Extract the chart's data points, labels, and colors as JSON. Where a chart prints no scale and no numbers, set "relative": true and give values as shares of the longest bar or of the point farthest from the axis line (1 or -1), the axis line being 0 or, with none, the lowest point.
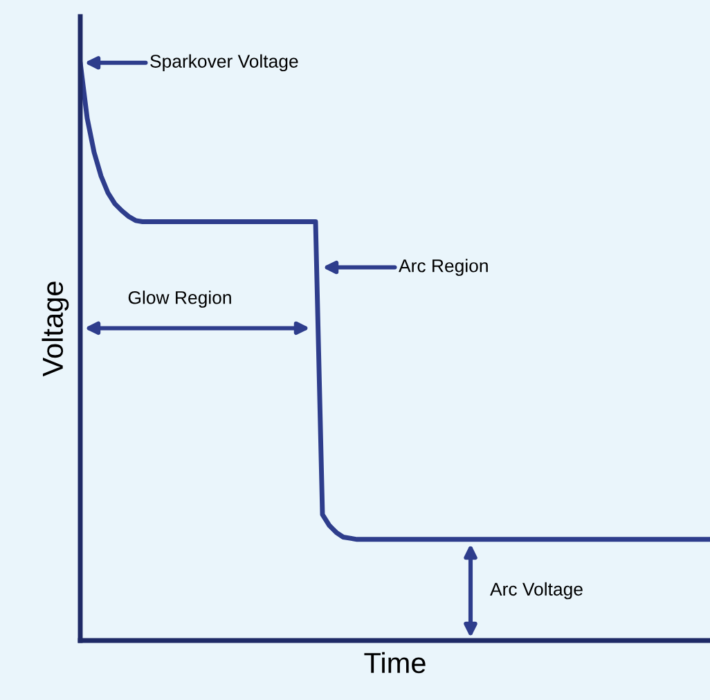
{
  "chart_data": {
    "type": "line",
    "relative": true,
    "xlabel": "Time",
    "ylabel": "Voltage",
    "color": "#2e3d8c",
    "marker": "none",
    "line_style": "solid",
    "categories": [
      null,
      null,
      null,
      null,
      null,
      null,
      null,
      null,
      null,
      null,
      null,
      null,
      null,
      null,
      null,
      null,
      null,
      null,
      null,
      null,
      null,
      null,
      null,
      null,
      null,
      null,
      null,
      null,
      null,
      null,
      null,
      null,
      null,
      null,
      null,
      null,
      null,
      null,
      null,
      null,
      null,
      null,
      null,
      null,
      null,
      null,
      null,
      null,
      null,
      null,
      null,
      null,
      null,
      null,
      null,
      null,
      null,
      null,
      null,
      null,
      null,
      null,
      null,
      null,
      null,
      null,
      null,
      null,
      null,
      null,
      null,
      null,
      null,
      null,
      null,
      null,
      null,
      null,
      null,
      null,
      null,
      null,
      null,
      null,
      null,
      null,
      null,
      null,
      null,
      null,
      null,
      null
    ],
    "values": [
      1.0,
      0.904,
      0.845,
      0.804,
      0.775,
      0.756,
      0.744,
      0.734,
      0.727,
      0.725,
      0.725,
      0.725,
      0.725,
      0.725,
      0.725,
      0.725,
      0.725,
      0.725,
      0.725,
      0.725,
      0.725,
      0.725,
      0.725,
      0.725,
      0.725,
      0.725,
      0.725,
      0.725,
      0.725,
      0.725,
      0.725,
      0.725,
      0.725,
      0.725,
      0.725,
      0.218,
      0.199,
      0.187,
      0.179,
      0.177,
      0.175,
      0.175,
      0.175,
      0.175,
      0.175,
      0.175,
      0.175,
      0.175,
      0.175,
      0.175,
      0.175,
      0.175,
      0.175,
      0.175,
      0.175,
      0.175,
      0.175,
      0.175,
      0.175,
      0.175,
      0.175,
      0.175,
      0.175,
      0.175,
      0.175,
      0.175,
      0.175,
      0.175,
      0.175,
      0.175,
      0.175,
      0.175,
      0.175,
      0.175,
      0.175,
      0.175,
      0.175,
      0.175,
      0.175,
      0.175,
      0.175,
      0.175,
      0.175,
      0.175,
      0.175,
      0.175,
      0.175,
      0.175,
      0.175,
      0.175,
      0.175,
      0.175
    ],
    "annotations": [
      "Sparkover Voltage",
      "Arc Region",
      "Glow Region",
      "Arc Voltage"
    ]
  }
}
